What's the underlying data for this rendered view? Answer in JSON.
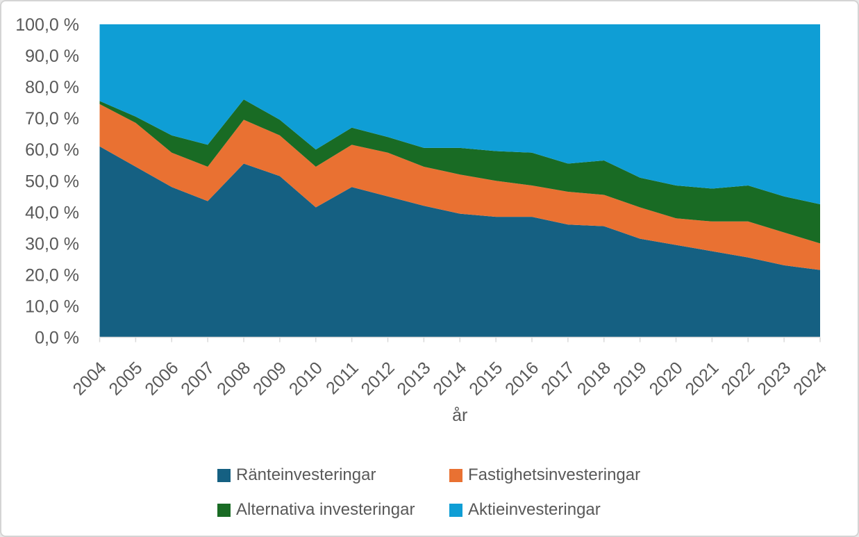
{
  "chart_data": {
    "type": "area",
    "stacked": true,
    "stack_total": 100,
    "title": "",
    "xlabel": "år",
    "ylabel": "",
    "x": [
      2004,
      2005,
      2006,
      2007,
      2008,
      2009,
      2010,
      2011,
      2012,
      2013,
      2014,
      2015,
      2016,
      2017,
      2018,
      2019,
      2020,
      2021,
      2022,
      2023,
      2024
    ],
    "series": [
      {
        "name": "Ränteinvesteringar",
        "color": "#156082",
        "values": [
          61,
          54.5,
          48,
          43.5,
          55.5,
          51.5,
          41.5,
          48,
          45,
          42,
          39.5,
          38.5,
          38.5,
          36,
          35.5,
          31.5,
          29.5,
          27.5,
          25.5,
          23,
          21.5
        ]
      },
      {
        "name": "Fastighetsinvesteringar",
        "color": "#E97132",
        "values": [
          13.5,
          14,
          11,
          11,
          14,
          13,
          13,
          13.5,
          14,
          12.5,
          12.5,
          11.5,
          10,
          10.5,
          10,
          10,
          8.5,
          9.5,
          11.5,
          10.5,
          8.5
        ]
      },
      {
        "name": "Alternativa investeringar",
        "color": "#196B24",
        "values": [
          1,
          2,
          5.5,
          7,
          6.5,
          5,
          5.5,
          5.5,
          5,
          6,
          8.5,
          9.5,
          10.5,
          9,
          11,
          9.5,
          10.5,
          10.5,
          11.5,
          11.5,
          12.5
        ]
      },
      {
        "name": "Aktieinvesteringar",
        "color": "#0F9ED5",
        "values": [
          24.5,
          29.5,
          35.5,
          38.5,
          24,
          30.5,
          40,
          33,
          36,
          39.5,
          39.5,
          40.5,
          41,
          44.5,
          43.5,
          49,
          51.5,
          52.5,
          51.5,
          55,
          57.5
        ]
      }
    ],
    "ylim": [
      0,
      100
    ],
    "y_step": 10,
    "gridlines": false,
    "legend_position": "bottom"
  },
  "axes": {
    "x_title": "år",
    "x_tick_labels": [
      "2004",
      "2005",
      "2006",
      "2007",
      "2008",
      "2009",
      "2010",
      "2011",
      "2012",
      "2013",
      "2014",
      "2015",
      "2016",
      "2017",
      "2018",
      "2019",
      "2020",
      "2021",
      "2022",
      "2023",
      "2024"
    ],
    "y_tick_labels": [
      "0,0 %",
      "10,0 %",
      "20,0 %",
      "30,0 %",
      "40,0 %",
      "50,0 %",
      "60,0 %",
      "70,0 %",
      "80,0 %",
      "90,0 %",
      "100,0 %"
    ],
    "axis_line_color": "#D9D9D9",
    "label_color": "#595959"
  },
  "legend": {
    "items": [
      {
        "label": "Ränteinvesteringar",
        "color": "#156082"
      },
      {
        "label": "Fastighetsinvesteringar",
        "color": "#E97132"
      },
      {
        "label": "Alternativa investeringar",
        "color": "#196B24"
      },
      {
        "label": "Aktieinvesteringar",
        "color": "#0F9ED5"
      }
    ]
  },
  "frame": {
    "background": "#FFFFFF",
    "border_color": "#D4D4D4"
  }
}
